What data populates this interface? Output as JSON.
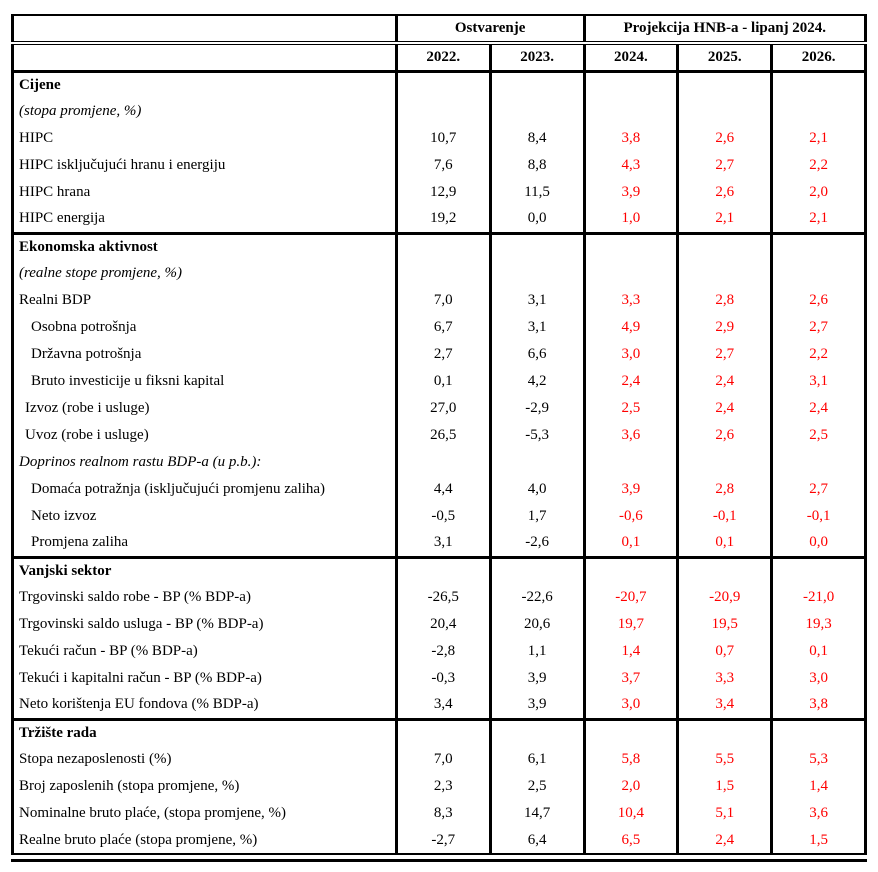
{
  "table": {
    "header": {
      "group_ostvarenje": "Ostvarenje",
      "group_projekcija": "Projekcija HNB-a - lipanj 2024.",
      "years": [
        "2022.",
        "2023.",
        "2024.",
        "2025.",
        "2026."
      ]
    },
    "colors": {
      "actual_text": "#000000",
      "projection_text": "#ff0000",
      "border": "#000000"
    },
    "sections": [
      {
        "name": "Cijene",
        "rows": [
          {
            "label": "Cijene",
            "style": "bold",
            "indent": 0,
            "values": []
          },
          {
            "label": "(stopa promjene, %)",
            "style": "italic",
            "indent": 0,
            "values": []
          },
          {
            "label": "HIPC",
            "style": "normal",
            "indent": 0,
            "values": [
              "10,7",
              "8,4",
              "3,8",
              "2,6",
              "2,1"
            ]
          },
          {
            "label": "HIPC isključujući hranu i energiju",
            "style": "normal",
            "indent": 0,
            "values": [
              "7,6",
              "8,8",
              "4,3",
              "2,7",
              "2,2"
            ]
          },
          {
            "label": "HIPC hrana",
            "style": "normal",
            "indent": 0,
            "values": [
              "12,9",
              "11,5",
              "3,9",
              "2,6",
              "2,0"
            ]
          },
          {
            "label": "HIPC energija",
            "style": "normal",
            "indent": 0,
            "values": [
              "19,2",
              "0,0",
              "1,0",
              "2,1",
              "2,1"
            ]
          }
        ]
      },
      {
        "name": "Ekonomska aktivnost",
        "rows": [
          {
            "label": "Ekonomska aktivnost",
            "style": "bold",
            "indent": 0,
            "values": []
          },
          {
            "label": "(realne stope promjene, %)",
            "style": "italic",
            "indent": 0,
            "values": []
          },
          {
            "label": "Realni BDP",
            "style": "normal",
            "indent": 0,
            "values": [
              "7,0",
              "3,1",
              "3,3",
              "2,8",
              "2,6"
            ]
          },
          {
            "label": "Osobna potrošnja",
            "style": "normal",
            "indent": 2,
            "values": [
              "6,7",
              "3,1",
              "4,9",
              "2,9",
              "2,7"
            ]
          },
          {
            "label": "Državna potrošnja",
            "style": "normal",
            "indent": 2,
            "values": [
              "2,7",
              "6,6",
              "3,0",
              "2,7",
              "2,2"
            ]
          },
          {
            "label": "Bruto investicije u fiksni kapital",
            "style": "normal",
            "indent": 2,
            "values": [
              "0,1",
              "4,2",
              "2,4",
              "2,4",
              "3,1"
            ]
          },
          {
            "label": "Izvoz (robe i usluge)",
            "style": "normal",
            "indent": 1,
            "values": [
              "27,0",
              "-2,9",
              "2,5",
              "2,4",
              "2,4"
            ]
          },
          {
            "label": "Uvoz (robe i usluge)",
            "style": "normal",
            "indent": 1,
            "values": [
              "26,5",
              "-5,3",
              "3,6",
              "2,6",
              "2,5"
            ]
          },
          {
            "label": "Doprinos realnom rastu BDP-a (u p.b.):",
            "style": "italic",
            "indent": 0,
            "values": []
          },
          {
            "label": "Domaća potražnja (isključujući promjenu zaliha)",
            "style": "normal",
            "indent": 2,
            "values": [
              "4,4",
              "4,0",
              "3,9",
              "2,8",
              "2,7"
            ]
          },
          {
            "label": "Neto izvoz",
            "style": "normal",
            "indent": 2,
            "values": [
              "-0,5",
              "1,7",
              "-0,6",
              "-0,1",
              "-0,1"
            ]
          },
          {
            "label": "Promjena zaliha",
            "style": "normal",
            "indent": 2,
            "values": [
              "3,1",
              "-2,6",
              "0,1",
              "0,1",
              "0,0"
            ]
          }
        ]
      },
      {
        "name": "Vanjski sektor",
        "rows": [
          {
            "label": "Vanjski sektor",
            "style": "bold",
            "indent": 0,
            "values": []
          },
          {
            "label": "Trgovinski saldo robe - BP (% BDP-a)",
            "style": "normal",
            "indent": 0,
            "values": [
              "-26,5",
              "-22,6",
              "-20,7",
              "-20,9",
              "-21,0"
            ]
          },
          {
            "label": "Trgovinski saldo usluga - BP (% BDP-a)",
            "style": "normal",
            "indent": 0,
            "values": [
              "20,4",
              "20,6",
              "19,7",
              "19,5",
              "19,3"
            ]
          },
          {
            "label": "Tekući račun - BP (% BDP-a)",
            "style": "normal",
            "indent": 0,
            "values": [
              "-2,8",
              "1,1",
              "1,4",
              "0,7",
              "0,1"
            ]
          },
          {
            "label": "Tekući i kapitalni račun - BP (% BDP-a)",
            "style": "normal",
            "indent": 0,
            "values": [
              "-0,3",
              "3,9",
              "3,7",
              "3,3",
              "3,0"
            ]
          },
          {
            "label": "Neto korištenja EU fondova (% BDP-a)",
            "style": "normal",
            "indent": 0,
            "values": [
              "3,4",
              "3,9",
              "3,0",
              "3,4",
              "3,8"
            ]
          }
        ]
      },
      {
        "name": "Tržište rada",
        "rows": [
          {
            "label": "Tržište rada",
            "style": "bold",
            "indent": 0,
            "values": []
          },
          {
            "label": "Stopa nezaposlenosti (%)",
            "style": "normal",
            "indent": 0,
            "values": [
              "7,0",
              "6,1",
              "5,8",
              "5,5",
              "5,3"
            ]
          },
          {
            "label": "Broj zaposlenih (stopa promjene, %)",
            "style": "normal",
            "indent": 0,
            "values": [
              "2,3",
              "2,5",
              "2,0",
              "1,5",
              "1,4"
            ]
          },
          {
            "label": "Nominalne bruto plaće, (stopa promjene, %)",
            "style": "normal",
            "indent": 0,
            "values": [
              "8,3",
              "14,7",
              "10,4",
              "5,1",
              "3,6"
            ]
          },
          {
            "label": "Realne bruto plaće (stopa promjene, %)",
            "style": "normal",
            "indent": 0,
            "values": [
              "-2,7",
              "6,4",
              "6,5",
              "2,4",
              "1,5"
            ]
          }
        ]
      }
    ]
  }
}
